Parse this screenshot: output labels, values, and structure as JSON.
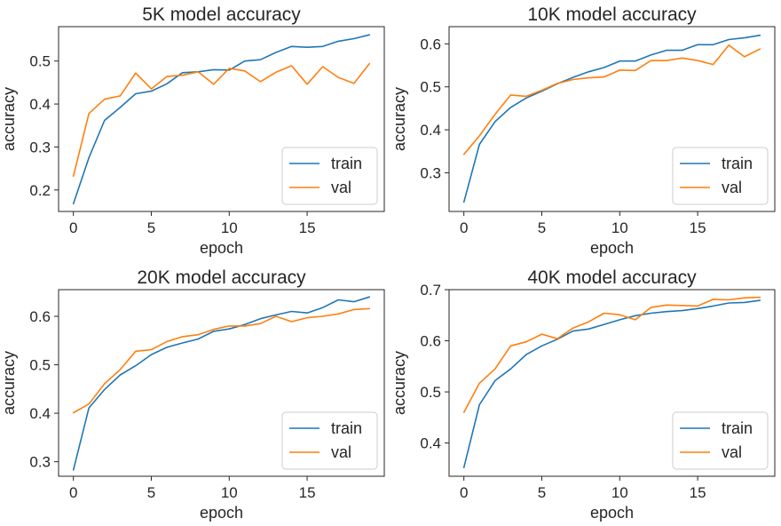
{
  "colors": {
    "train": "#1f77b4",
    "val": "#ff7f0e"
  },
  "chart_data": [
    {
      "type": "line",
      "title": "5K model accuracy",
      "xlabel": "epoch",
      "ylabel": "accuracy",
      "xlim": [
        -0.95,
        19.95
      ],
      "ylim": [
        0.15,
        0.58
      ],
      "xticks": [
        0,
        5,
        10,
        15
      ],
      "yticks": [
        0.2,
        0.3,
        0.4,
        0.5
      ],
      "yticklabels": [
        "0.2",
        "0.3",
        "0.4",
        "0.5"
      ],
      "legend": "lower-right",
      "x": [
        0,
        1,
        2,
        3,
        4,
        5,
        6,
        7,
        8,
        9,
        10,
        11,
        12,
        13,
        14,
        15,
        16,
        17,
        18,
        19
      ],
      "series": [
        {
          "name": "train",
          "color": "#1f77b4",
          "values": [
            0.168,
            0.275,
            0.362,
            0.392,
            0.424,
            0.43,
            0.447,
            0.473,
            0.475,
            0.48,
            0.479,
            0.5,
            0.503,
            0.52,
            0.534,
            0.532,
            0.534,
            0.546,
            0.552,
            0.561
          ]
        },
        {
          "name": "val",
          "color": "#ff7f0e",
          "values": [
            0.232,
            0.378,
            0.411,
            0.419,
            0.472,
            0.435,
            0.464,
            0.467,
            0.475,
            0.446,
            0.483,
            0.477,
            0.452,
            0.474,
            0.489,
            0.446,
            0.487,
            0.462,
            0.448,
            0.494
          ]
        }
      ]
    },
    {
      "type": "line",
      "title": "10K model accuracy",
      "xlabel": "epoch",
      "ylabel": "accuracy",
      "xlim": [
        -0.95,
        19.95
      ],
      "ylim": [
        0.21,
        0.64
      ],
      "xticks": [
        0,
        5,
        10,
        15
      ],
      "yticks": [
        0.3,
        0.4,
        0.5,
        0.6
      ],
      "yticklabels": [
        "0.3",
        "0.4",
        "0.5",
        "0.6"
      ],
      "legend": "lower-right",
      "x": [
        0,
        1,
        2,
        3,
        4,
        5,
        6,
        7,
        8,
        9,
        10,
        11,
        12,
        13,
        14,
        15,
        16,
        17,
        18,
        19
      ],
      "series": [
        {
          "name": "train",
          "color": "#1f77b4",
          "values": [
            0.232,
            0.366,
            0.419,
            0.452,
            0.474,
            0.49,
            0.507,
            0.522,
            0.535,
            0.545,
            0.56,
            0.56,
            0.574,
            0.585,
            0.585,
            0.598,
            0.598,
            0.61,
            0.614,
            0.62
          ]
        },
        {
          "name": "val",
          "color": "#ff7f0e",
          "values": [
            0.343,
            0.386,
            0.436,
            0.481,
            0.478,
            0.492,
            0.508,
            0.517,
            0.521,
            0.523,
            0.539,
            0.538,
            0.561,
            0.561,
            0.567,
            0.561,
            0.552,
            0.597,
            0.57,
            0.588
          ]
        }
      ]
    },
    {
      "type": "line",
      "title": "20K model accuracy",
      "xlabel": "epoch",
      "ylabel": "accuracy",
      "xlim": [
        -0.95,
        19.95
      ],
      "ylim": [
        0.27,
        0.655
      ],
      "xticks": [
        0,
        5,
        10,
        15
      ],
      "yticks": [
        0.3,
        0.4,
        0.5,
        0.6
      ],
      "yticklabels": [
        "0.3",
        "0.4",
        "0.5",
        "0.6"
      ],
      "legend": "lower-right",
      "x": [
        0,
        1,
        2,
        3,
        4,
        5,
        6,
        7,
        8,
        9,
        10,
        11,
        12,
        13,
        14,
        15,
        16,
        17,
        18,
        19
      ],
      "series": [
        {
          "name": "train",
          "color": "#1f77b4",
          "values": [
            0.283,
            0.411,
            0.449,
            0.479,
            0.498,
            0.521,
            0.536,
            0.545,
            0.553,
            0.569,
            0.574,
            0.583,
            0.595,
            0.603,
            0.61,
            0.607,
            0.618,
            0.634,
            0.63,
            0.64
          ]
        },
        {
          "name": "val",
          "color": "#ff7f0e",
          "values": [
            0.401,
            0.419,
            0.461,
            0.49,
            0.528,
            0.531,
            0.548,
            0.558,
            0.562,
            0.573,
            0.58,
            0.58,
            0.585,
            0.6,
            0.589,
            0.597,
            0.6,
            0.605,
            0.614,
            0.616
          ]
        }
      ]
    },
    {
      "type": "line",
      "title": "40K model accuracy",
      "xlabel": "epoch",
      "ylabel": "accuracy",
      "xlim": [
        -0.95,
        19.95
      ],
      "ylim": [
        0.335,
        0.7
      ],
      "xticks": [
        0,
        5,
        10,
        15
      ],
      "yticks": [
        0.4,
        0.5,
        0.6,
        0.7
      ],
      "yticklabels": [
        "0.4",
        "0.5",
        "0.6",
        "0.7"
      ],
      "legend": "lower-right",
      "x": [
        0,
        1,
        2,
        3,
        4,
        5,
        6,
        7,
        8,
        9,
        10,
        11,
        12,
        13,
        14,
        15,
        16,
        17,
        18,
        19
      ],
      "series": [
        {
          "name": "train",
          "color": "#1f77b4",
          "values": [
            0.352,
            0.475,
            0.522,
            0.545,
            0.573,
            0.59,
            0.603,
            0.619,
            0.623,
            0.632,
            0.641,
            0.649,
            0.654,
            0.657,
            0.659,
            0.663,
            0.668,
            0.674,
            0.675,
            0.679
          ]
        },
        {
          "name": "val",
          "color": "#ff7f0e",
          "values": [
            0.46,
            0.517,
            0.545,
            0.59,
            0.598,
            0.613,
            0.604,
            0.625,
            0.637,
            0.654,
            0.651,
            0.641,
            0.665,
            0.67,
            0.669,
            0.668,
            0.681,
            0.68,
            0.684,
            0.685
          ]
        }
      ]
    }
  ]
}
